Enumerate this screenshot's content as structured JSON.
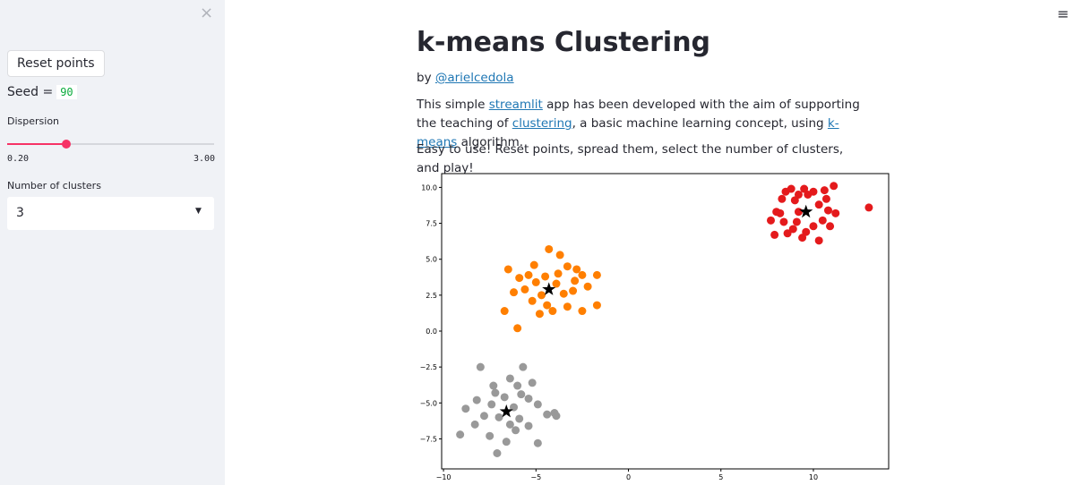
{
  "sidebar": {
    "button": "Reset points",
    "seed_label": "Seed =",
    "seed_value": "90",
    "slider": {
      "label": "Dispersion",
      "min": {
        "value": 0.2,
        "label": "0.20"
      },
      "max": {
        "value": 3.0,
        "label": "3.00"
      },
      "value": 1.0
    },
    "select": {
      "label": "Number of clusters",
      "value": "3"
    }
  },
  "main": {
    "title": "k-means Clustering",
    "byline": {
      "prefix": "by",
      "link": "@arielcedola"
    },
    "paragraph": [
      "This simple ",
      "streamlit",
      " app has been developed with the aim of supporting the teaching of ",
      "clustering",
      ", a basic machine learning concept, using ",
      "k-means",
      " algorithm."
    ],
    "instructions": "Easy to use! Reset points, spread them, select the number of clusters, and play!"
  },
  "chart_data": {
    "type": "scatter",
    "xlim": [
      -10.1,
      14.07
    ],
    "ylim": [
      -9.59,
      10.96
    ],
    "xticks": [
      {
        "value": -10,
        "label": "−10"
      },
      {
        "value": -5,
        "label": "−5"
      },
      0,
      5,
      10
    ],
    "yticks": [
      {
        "value": 10,
        "label": "10.0"
      },
      7.5,
      {
        "value": 5,
        "label": "5.0"
      },
      2.5,
      {
        "value": 0,
        "label": "0.0"
      },
      {
        "value": -2.5,
        "label": "−2.5"
      },
      {
        "value": -5,
        "label": "−5.0"
      },
      {
        "value": -7.5,
        "label": "−7.5"
      }
    ],
    "series": [
      {
        "color": "#e41a1c",
        "marker": "circle",
        "x": [
          7.7,
          8.0,
          8.3,
          8.5,
          8.8,
          9.2,
          9.5,
          9.7,
          10.0,
          10.6,
          11.1,
          10.3,
          10.8,
          11.2,
          10.5,
          10.0,
          9.6,
          10.3,
          9.4,
          8.9,
          8.4,
          8.6,
          9.1,
          7.9,
          9.2,
          13.0,
          10.9,
          8.2,
          9.0,
          10.7
        ],
        "y": [
          7.7,
          8.3,
          9.2,
          9.7,
          9.9,
          9.5,
          9.9,
          9.5,
          9.7,
          9.8,
          10.1,
          8.8,
          8.4,
          8.2,
          7.7,
          7.3,
          6.9,
          6.3,
          6.5,
          7.1,
          7.6,
          6.8,
          7.6,
          6.7,
          8.3,
          8.6,
          7.3,
          8.2,
          9.1,
          9.2
        ]
      },
      {
        "color": "#ff7f00",
        "marker": "circle",
        "x": [
          -6.5,
          -5.1,
          -4.3,
          -3.7,
          -3.3,
          -2.8,
          -2.5,
          -1.7,
          -2.2,
          -1.7,
          -2.5,
          -3.3,
          -4.1,
          -4.8,
          -5.2,
          -6.7,
          -6.2,
          -5.6,
          -5.0,
          -4.5,
          -3.9,
          -3.5,
          -3.0,
          -4.7,
          -5.9,
          -6.0,
          -4.4,
          -2.9,
          -5.4,
          -3.8
        ],
        "y": [
          4.3,
          4.6,
          5.7,
          5.3,
          4.5,
          4.3,
          3.9,
          3.9,
          3.1,
          1.8,
          1.4,
          1.7,
          1.4,
          1.2,
          2.1,
          1.4,
          2.7,
          2.9,
          3.4,
          3.8,
          3.3,
          2.6,
          2.8,
          2.5,
          3.7,
          0.2,
          1.8,
          3.5,
          3.9,
          4.0
        ]
      },
      {
        "color": "#999999",
        "marker": "circle",
        "x": [
          -8.0,
          -7.2,
          -6.4,
          -6.0,
          -5.7,
          -5.2,
          -5.4,
          -4.9,
          -4.4,
          -4.0,
          -3.9,
          -4.9,
          -5.4,
          -6.1,
          -6.6,
          -7.1,
          -7.5,
          -8.3,
          -9.1,
          -8.8,
          -8.2,
          -7.4,
          -7.0,
          -6.7,
          -6.2,
          -5.9,
          -7.8,
          -6.4,
          -7.3,
          -5.8
        ],
        "y": [
          -2.5,
          -4.3,
          -3.3,
          -3.8,
          -2.5,
          -3.6,
          -4.7,
          -5.1,
          -5.8,
          -5.7,
          -5.9,
          -7.8,
          -6.6,
          -6.9,
          -7.7,
          -8.5,
          -7.3,
          -6.5,
          -7.2,
          -5.4,
          -4.8,
          -5.1,
          -6.0,
          -4.6,
          -5.3,
          -6.1,
          -5.9,
          -6.5,
          -3.8,
          -4.4
        ]
      },
      {
        "color": "#000000",
        "marker": "star",
        "x": [
          9.6,
          -4.3,
          -6.6
        ],
        "y": [
          8.3,
          2.9,
          -5.6
        ]
      }
    ]
  }
}
